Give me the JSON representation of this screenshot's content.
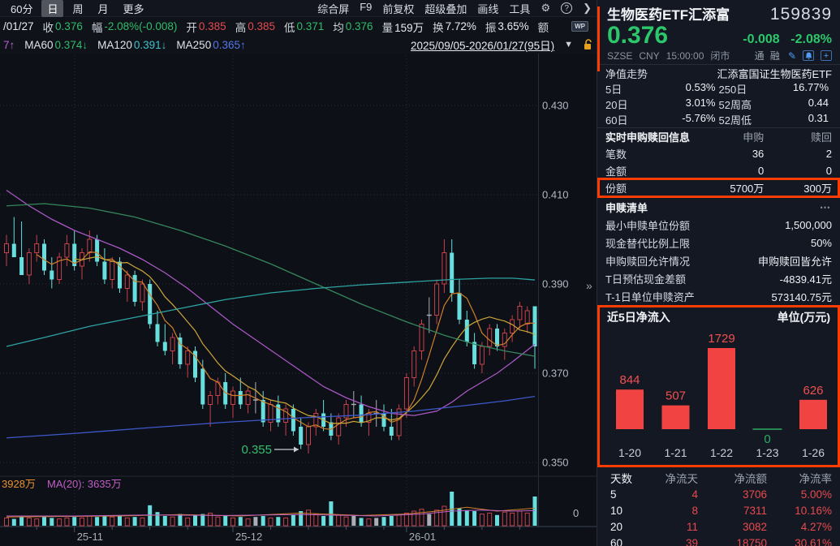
{
  "toolbar": {
    "period_tabs": [
      {
        "label": "60分",
        "active": false
      },
      {
        "label": "日",
        "active": true
      },
      {
        "label": "周",
        "active": false
      },
      {
        "label": "月",
        "active": false
      },
      {
        "label": "更多",
        "active": false
      }
    ],
    "menu_items": [
      "综合屏",
      "F9",
      "前复权",
      "超级叠加",
      "画线",
      "工具"
    ],
    "gear_glyph": "⚙",
    "help_glyph": "?",
    "chevron_glyph": "❯"
  },
  "info_bar": {
    "date_fragment": "/01/27",
    "items": [
      {
        "label": "收",
        "value": "0.376",
        "color": "green"
      },
      {
        "label": "幅",
        "value": "-2.08%(-0.008)",
        "color": "green"
      },
      {
        "label": "开",
        "value": "0.385",
        "color": "red"
      },
      {
        "label": "高",
        "value": "0.385",
        "color": "red"
      },
      {
        "label": "低",
        "value": "0.371",
        "color": "green"
      },
      {
        "label": "均",
        "value": "0.376",
        "color": "green"
      },
      {
        "label": "量",
        "value": "159万",
        "color": "white"
      },
      {
        "label": "换",
        "value": "7.72%",
        "color": "white"
      },
      {
        "label": "振",
        "value": "3.65%",
        "color": "white"
      },
      {
        "label": "额",
        "value": "",
        "color": "white"
      }
    ],
    "wp_badge": "WP"
  },
  "ma_bar": {
    "truncated_fragment": {
      "text": "7↑",
      "color": "purple"
    },
    "items": [
      {
        "label": "MA60",
        "value": "0.374↓",
        "color": "green"
      },
      {
        "label": "MA120",
        "value": "0.391↓",
        "color": "cyan"
      },
      {
        "label": "MA250",
        "value": "0.365↑",
        "color": "blue"
      }
    ],
    "date_range": "2025/09/05-2026/01/27(95日)",
    "dropdown_glyph": "▼",
    "lock_state": "unlocked"
  },
  "chart_data": [
    {
      "type": "candlestick",
      "title": "日K 生物医药ETF汇添富 159839",
      "price_scale_note": "prices stored ×1000",
      "y_ticks": [
        "0.430",
        "0.410",
        "0.390",
        "0.370",
        "0.350"
      ],
      "ylim": [
        0.345,
        0.432
      ],
      "x_labels": [
        {
          "text": "25-11",
          "day": 10
        },
        {
          "text": "25-12",
          "day": 31
        },
        {
          "text": "26-01",
          "day": 54
        }
      ],
      "annotation": {
        "text": "0.355",
        "arrow": "→",
        "day": 41,
        "price": 354
      },
      "candles": [
        [
          397,
          401,
          394,
          399,
          8
        ],
        [
          399,
          405,
          396,
          396,
          7
        ],
        [
          396,
          404,
          392,
          392,
          9
        ],
        [
          392,
          398,
          390,
          397,
          8
        ],
        [
          397,
          401,
          395,
          399,
          7
        ],
        [
          399,
          400,
          392,
          393,
          9
        ],
        [
          393,
          396,
          389,
          391,
          8
        ],
        [
          391,
          397,
          390,
          396,
          7
        ],
        [
          396,
          401,
          394,
          399,
          8
        ],
        [
          399,
          402,
          393,
          394,
          9
        ],
        [
          394,
          398,
          391,
          397,
          8
        ],
        [
          397,
          402,
          395,
          400,
          10
        ],
        [
          400,
          401,
          394,
          395,
          9
        ],
        [
          395,
          398,
          390,
          391,
          10
        ],
        [
          391,
          396,
          389,
          395,
          9
        ],
        [
          395,
          396,
          388,
          389,
          10
        ],
        [
          389,
          393,
          386,
          392,
          8
        ],
        [
          392,
          393,
          385,
          386,
          9
        ],
        [
          386,
          391,
          384,
          390,
          8
        ],
        [
          390,
          391,
          380,
          381,
          21
        ],
        [
          381,
          384,
          376,
          377,
          14
        ],
        [
          377,
          381,
          374,
          375,
          10
        ],
        [
          375,
          379,
          372,
          378,
          9
        ],
        [
          378,
          379,
          371,
          372,
          12
        ],
        [
          372,
          376,
          369,
          375,
          8
        ],
        [
          375,
          376,
          368,
          369,
          11
        ],
        [
          371,
          373,
          362,
          363,
          12
        ],
        [
          363,
          366,
          358,
          365,
          13
        ],
        [
          365,
          369,
          363,
          368,
          9
        ],
        [
          368,
          370,
          362,
          363,
          10
        ],
        [
          363,
          367,
          360,
          366,
          8
        ],
        [
          366,
          369,
          362,
          363,
          9
        ],
        [
          363,
          367,
          361,
          366,
          7
        ],
        [
          364,
          368,
          361,
          364,
          9,
          1
        ],
        [
          364,
          366,
          358,
          359,
          10
        ],
        [
          359,
          364,
          357,
          363,
          8
        ],
        [
          363,
          365,
          358,
          359,
          9
        ],
        [
          359,
          363,
          356,
          362,
          8
        ],
        [
          362,
          363,
          356,
          357,
          11
        ],
        [
          358,
          360,
          353,
          354,
          15
        ],
        [
          354,
          359,
          352,
          358,
          16
        ],
        [
          358,
          362,
          356,
          361,
          12
        ],
        [
          361,
          364,
          357,
          358,
          10
        ],
        [
          359,
          361,
          355,
          356,
          25
        ],
        [
          356,
          361,
          354,
          360,
          11
        ],
        [
          360,
          364,
          358,
          363,
          9
        ],
        [
          363,
          366,
          360,
          363,
          10,
          1
        ],
        [
          363,
          365,
          358,
          359,
          8
        ],
        [
          359,
          362,
          356,
          361,
          7
        ],
        [
          361,
          364,
          358,
          361,
          8,
          1
        ],
        [
          361,
          363,
          357,
          358,
          9
        ],
        [
          358,
          362,
          355,
          356,
          10
        ],
        [
          356,
          363,
          355,
          362,
          11
        ],
        [
          362,
          370,
          360,
          369,
          13
        ],
        [
          369,
          376,
          367,
          375,
          15
        ],
        [
          375,
          382,
          373,
          381,
          17
        ],
        [
          383,
          387,
          379,
          383,
          12,
          1
        ],
        [
          383,
          391,
          381,
          390,
          16
        ],
        [
          390,
          400,
          388,
          397,
          20
        ],
        [
          397,
          400,
          386,
          388,
          35
        ],
        [
          388,
          391,
          381,
          382,
          18
        ],
        [
          382,
          384,
          376,
          377,
          16
        ],
        [
          377,
          379,
          371,
          372,
          15
        ],
        [
          372,
          377,
          370,
          376,
          12
        ],
        [
          376,
          381,
          374,
          380,
          13
        ],
        [
          380,
          381,
          375,
          376,
          11
        ],
        [
          376,
          380,
          373,
          379,
          14
        ],
        [
          379,
          383,
          377,
          382,
          13
        ],
        [
          382,
          386,
          380,
          385,
          15
        ],
        [
          381,
          385,
          379,
          384,
          13
        ],
        [
          385,
          385,
          371,
          376,
          30
        ]
      ],
      "moving_averages": {
        "ma20_purple": [
          [
            1,
            411
          ],
          [
            4,
            407.5
          ],
          [
            7,
            404.5
          ],
          [
            10,
            402
          ],
          [
            13,
            400
          ],
          [
            16,
            398
          ],
          [
            19,
            395.5
          ],
          [
            22,
            392.5
          ],
          [
            25,
            389
          ],
          [
            28,
            385
          ],
          [
            31,
            381
          ],
          [
            34,
            377.5
          ],
          [
            37,
            374
          ],
          [
            40,
            370.5
          ],
          [
            43,
            367
          ],
          [
            46,
            364.5
          ],
          [
            49,
            362.5
          ],
          [
            52,
            361
          ],
          [
            55,
            360.5
          ],
          [
            58,
            361.5
          ],
          [
            60,
            363.5
          ],
          [
            62,
            366
          ],
          [
            64,
            368
          ],
          [
            66,
            370
          ],
          [
            68,
            372.5
          ],
          [
            71,
            376.5
          ]
        ],
        "ma60_green": [
          [
            1,
            407.5
          ],
          [
            6,
            408
          ],
          [
            12,
            407
          ],
          [
            18,
            405
          ],
          [
            24,
            402
          ],
          [
            30,
            398.5
          ],
          [
            36,
            394.5
          ],
          [
            42,
            390
          ],
          [
            48,
            385.5
          ],
          [
            54,
            381.5
          ],
          [
            59,
            378.5
          ],
          [
            63,
            376.5
          ],
          [
            67,
            375
          ],
          [
            71,
            373.8
          ]
        ],
        "ma120_cyan": [
          [
            1,
            376
          ],
          [
            6,
            378
          ],
          [
            12,
            380.5
          ],
          [
            18,
            382.5
          ],
          [
            24,
            384.5
          ],
          [
            30,
            386.5
          ],
          [
            36,
            388
          ],
          [
            42,
            389
          ],
          [
            48,
            389.8
          ],
          [
            54,
            390.4
          ],
          [
            60,
            391
          ],
          [
            65,
            391.3
          ],
          [
            68,
            391.3
          ],
          [
            71,
            390.9
          ]
        ],
        "ma250_blue": [
          [
            1,
            355.5
          ],
          [
            10,
            356.5
          ],
          [
            20,
            357.8
          ],
          [
            30,
            359
          ],
          [
            40,
            360
          ],
          [
            48,
            360.6
          ],
          [
            55,
            361.5
          ],
          [
            62,
            362.8
          ],
          [
            67,
            363.8
          ],
          [
            71,
            364.8
          ]
        ]
      },
      "volume_ma": {
        "orange": [
          [
            1,
            9
          ],
          [
            8,
            9.5
          ],
          [
            16,
            10
          ],
          [
            24,
            11.5
          ],
          [
            32,
            10
          ],
          [
            40,
            13
          ],
          [
            48,
            10.5
          ],
          [
            54,
            12
          ],
          [
            58,
            15
          ],
          [
            62,
            19
          ],
          [
            66,
            15
          ],
          [
            71,
            18
          ]
        ],
        "magenta": [
          [
            1,
            10
          ],
          [
            10,
            10
          ],
          [
            20,
            11
          ],
          [
            30,
            10.5
          ],
          [
            40,
            11.5
          ],
          [
            50,
            10
          ],
          [
            56,
            12
          ],
          [
            60,
            15
          ],
          [
            64,
            16
          ],
          [
            68,
            15
          ],
          [
            71,
            15.5
          ]
        ]
      },
      "volume_labels": {
        "current": "3928万",
        "ma": "MA(20): 3635万",
        "zero": "0"
      }
    },
    {
      "type": "bar",
      "title": "近5日净流入",
      "unit": "单位(万元)",
      "categories": [
        "1-20",
        "1-21",
        "1-22",
        "1-23",
        "1-26"
      ],
      "values": [
        844,
        507,
        1729,
        0,
        626
      ],
      "ylim": [
        0,
        1729
      ],
      "bar_color": "#f24343",
      "zero_color": "#2faa62"
    }
  ],
  "panel": {
    "collapse_glyph": "»",
    "title": "生物医药ETF汇添富",
    "code": "159839",
    "price": "0.376",
    "change": "-0.008",
    "change_pct": "-2.08%",
    "status": {
      "exchange": "SZSE",
      "currency": "CNY",
      "time": "15:00:00",
      "market": "闭市",
      "tags": "通 融"
    },
    "nav": {
      "label": "净值走势",
      "fund_name": "汇添富国证生物医药ETF",
      "rows": [
        [
          {
            "l": "5日",
            "v": "0.53%",
            "c": "red"
          },
          {
            "l": "250日",
            "v": "16.77%",
            "c": "red"
          }
        ],
        [
          {
            "l": "20日",
            "v": "3.01%",
            "c": "red"
          },
          {
            "l": "52周高",
            "v": "0.44",
            "c": "white"
          }
        ],
        [
          {
            "l": "60日",
            "v": "-5.76%",
            "c": "green"
          },
          {
            "l": "52周低",
            "v": "0.31",
            "c": "white"
          }
        ]
      ]
    },
    "realtime": {
      "title": "实时申购赎回信息",
      "col_a": "申购",
      "col_b": "赎回",
      "rows": [
        {
          "l": "笔数",
          "a": "36",
          "b": "2",
          "highlight": false
        },
        {
          "l": "金额",
          "a": "0",
          "b": "0",
          "highlight": false
        },
        {
          "l": "份额",
          "a": "5700万",
          "b": "300万",
          "highlight": true
        }
      ]
    },
    "list": {
      "title": "申赎清单",
      "more": "⋯",
      "rows": [
        {
          "l": "最小申赎单位份额",
          "v": "1,500,000"
        },
        {
          "l": "现金替代比例上限",
          "v": "50%"
        },
        {
          "l": "申购赎回允许情况",
          "v": "申购赎回皆允许"
        },
        {
          "l": "T日预估现金差额",
          "v": "-4839.41元"
        },
        {
          "l": "T-1日单位申赎资产",
          "v": "573140.75元"
        }
      ]
    },
    "stats": {
      "headers": [
        "天数",
        "净流天",
        "净流额",
        "净流率"
      ],
      "rows": [
        [
          "5",
          "4",
          "3706",
          "5.00%"
        ],
        [
          "10",
          "8",
          "7311",
          "10.16%"
        ],
        [
          "20",
          "11",
          "3082",
          "4.27%"
        ],
        [
          "60",
          "39",
          "18750",
          "30.61%"
        ]
      ]
    }
  }
}
